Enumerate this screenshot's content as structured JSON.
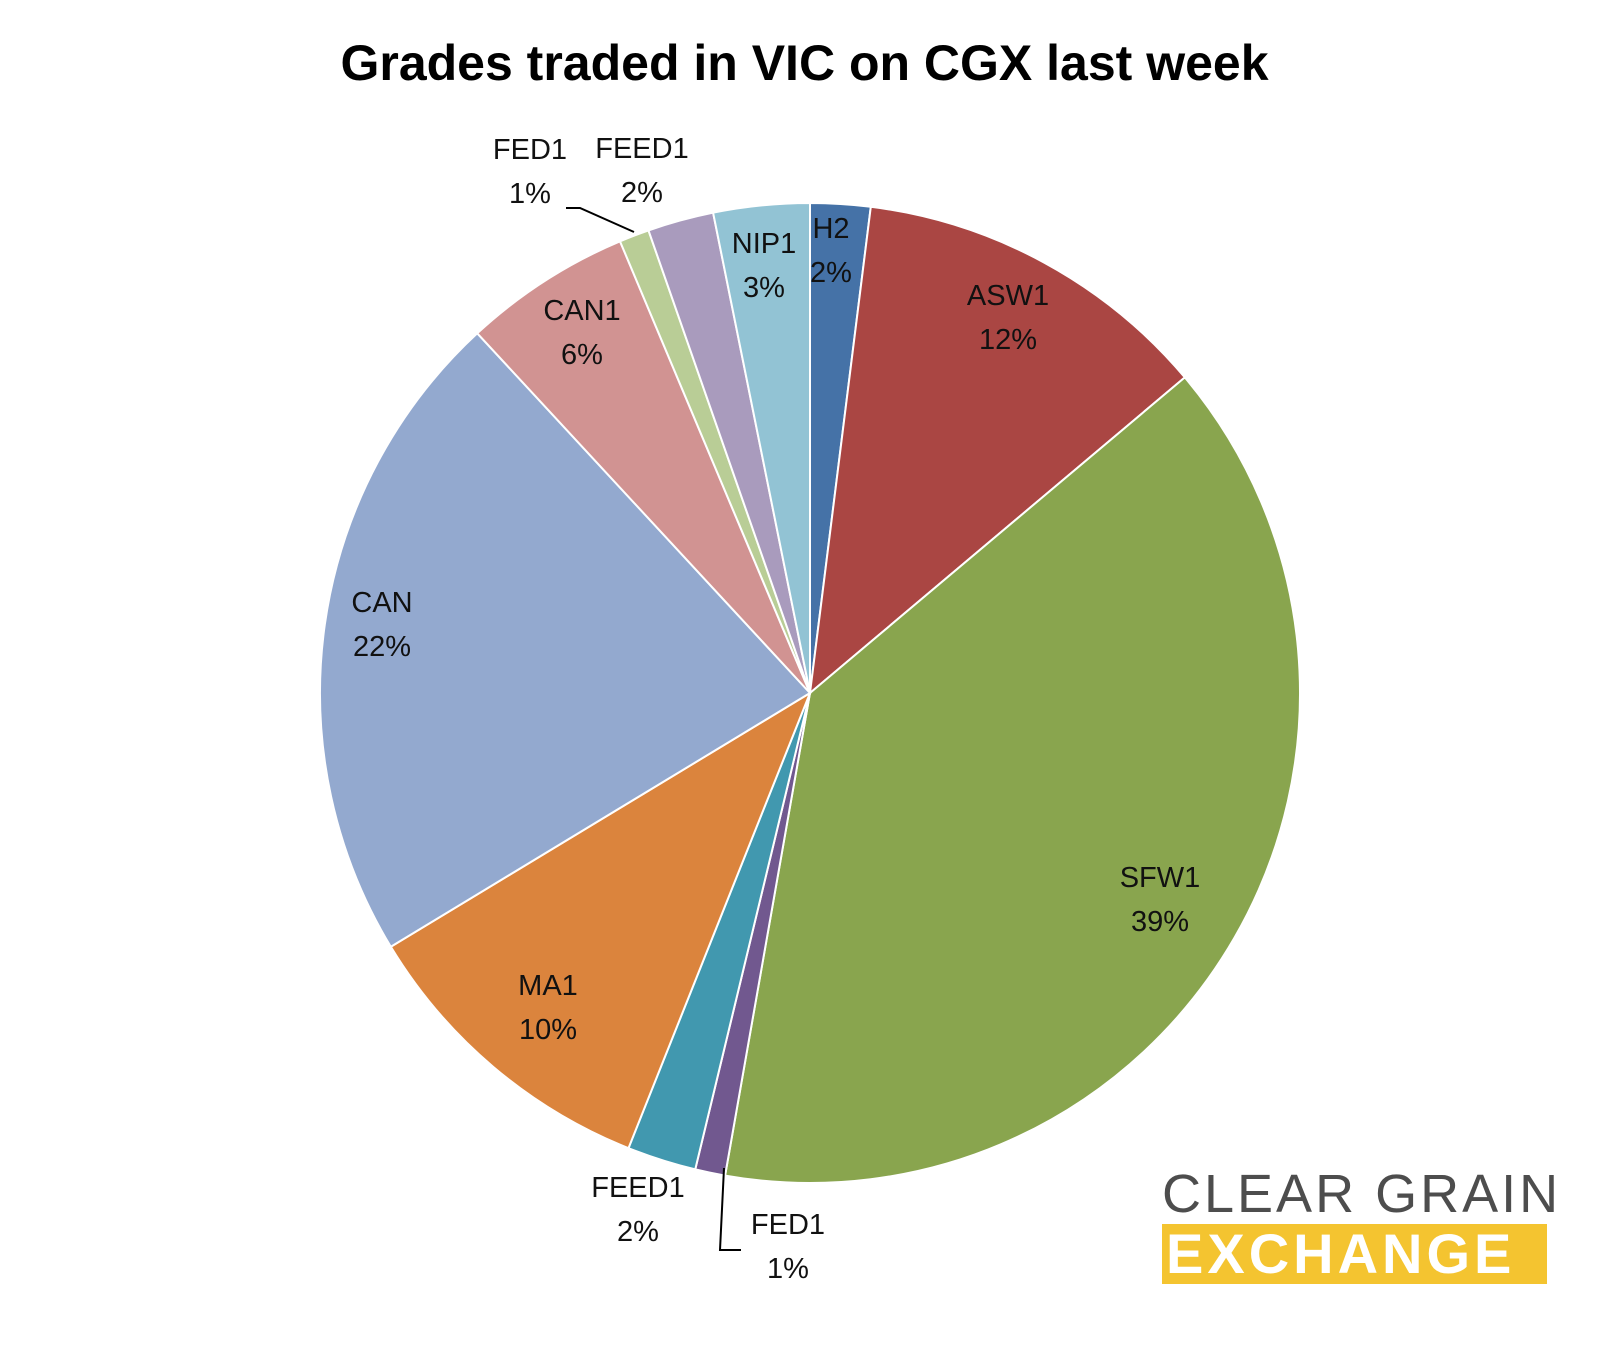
{
  "chart_data": {
    "type": "pie",
    "title": "Grades traded in VIC on CGX last week",
    "slices": [
      {
        "label": "H2",
        "pct_label": "2%",
        "value": 2.0,
        "color": "#4572A7"
      },
      {
        "label": "ASW1",
        "pct_label": "12%",
        "value": 12.0,
        "color": "#AA4643"
      },
      {
        "label": "SFW1",
        "pct_label": "39%",
        "value": 39.3,
        "color": "#89A54E"
      },
      {
        "label": "FED1",
        "pct_label": "1%",
        "value": 1.0,
        "color": "#71588F"
      },
      {
        "label": "FEED1",
        "pct_label": "2%",
        "value": 2.3,
        "color": "#4198AF"
      },
      {
        "label": "MA1",
        "pct_label": "10%",
        "value": 10.4,
        "color": "#DB843D"
      },
      {
        "label": "CAN",
        "pct_label": "22%",
        "value": 22.0,
        "color": "#93A9CF"
      },
      {
        "label": "CAN1",
        "pct_label": "6%",
        "value": 5.6,
        "color": "#D19392"
      },
      {
        "label": "FED1",
        "pct_label": "1%",
        "value": 1.0,
        "color": "#B9CD96"
      },
      {
        "label": "FEED1",
        "pct_label": "2%",
        "value": 2.2,
        "color": "#A99BBD"
      },
      {
        "label": "NIP1",
        "pct_label": "3%",
        "value": 3.2,
        "color": "#92C3D4"
      }
    ]
  },
  "logo": {
    "line1": "CLEAR GRAIN",
    "line2": "EXCHANGE",
    "accent_color": "#F4C430"
  }
}
